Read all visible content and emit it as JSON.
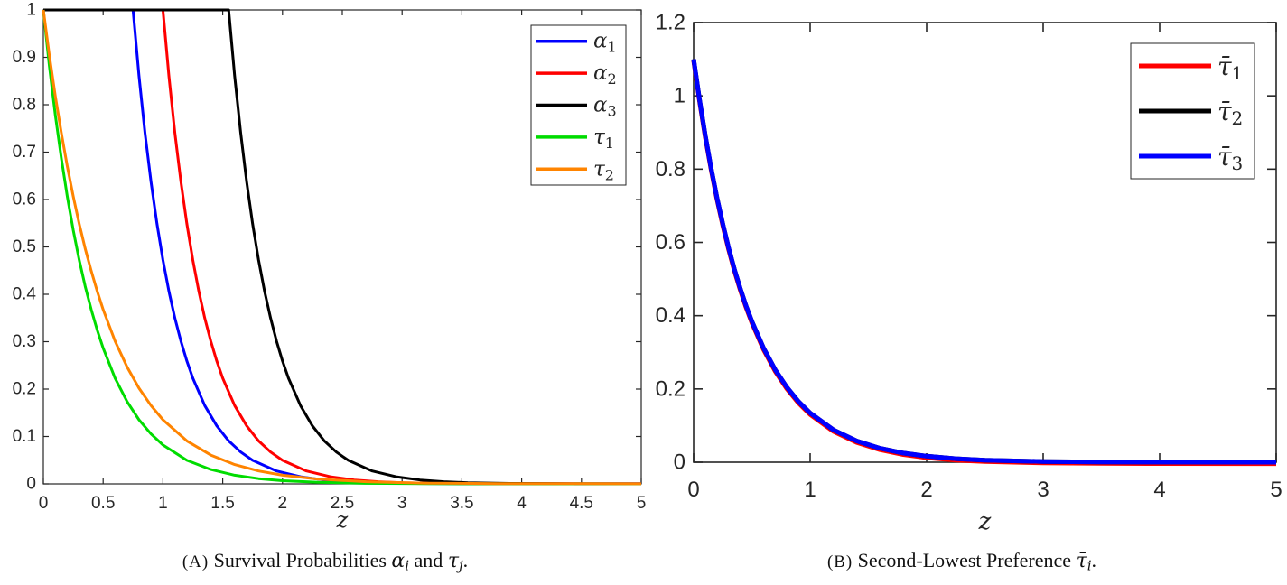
{
  "figure": {
    "background": "#ffffff",
    "axis_color": "#262626"
  },
  "captions": [
    {
      "id": "a",
      "parts": [
        {
          "t": "(A)",
          "s": "label"
        },
        {
          "t": " Survival Probabilities ",
          "s": "rm"
        },
        {
          "t": "α",
          "s": "it"
        },
        {
          "t": "i",
          "s": "sub"
        },
        {
          "t": " and ",
          "s": "rm"
        },
        {
          "t": "τ",
          "s": "it"
        },
        {
          "t": "j",
          "s": "sub"
        },
        {
          "t": ".",
          "s": "rm"
        }
      ]
    },
    {
      "id": "b",
      "parts": [
        {
          "t": "(B)",
          "s": "label"
        },
        {
          "t": " Second-Lowest Preference ",
          "s": "rm"
        },
        {
          "t": "τ̄",
          "s": "it"
        },
        {
          "t": "i",
          "s": "sub"
        },
        {
          "t": ".",
          "s": "rm"
        }
      ]
    }
  ],
  "chart_data": [
    {
      "id": "A",
      "type": "line",
      "title": "",
      "xlabel": "z",
      "ylabel": "",
      "xlim": [
        0,
        5
      ],
      "ylim": [
        0,
        1
      ],
      "grid": false,
      "legend_position": "top-right",
      "xticks": {
        "values": [
          0,
          0.5,
          1,
          1.5,
          2,
          2.5,
          3,
          3.5,
          4,
          4.5,
          5
        ],
        "labels": [
          "0",
          "0.5",
          "1",
          "1.5",
          "2",
          "2.5",
          "3",
          "3.5",
          "4",
          "4.5",
          "5"
        ]
      },
      "yticks": {
        "values": [
          0,
          0.1,
          0.2,
          0.3,
          0.4,
          0.5,
          0.6,
          0.7,
          0.8,
          0.9,
          1
        ],
        "labels": [
          "0",
          "0.1",
          "0.2",
          "0.3",
          "0.4",
          "0.5",
          "0.6",
          "0.7",
          "0.8",
          "0.9",
          "1"
        ]
      },
      "series": [
        {
          "key": "alpha1",
          "base": "α",
          "sub": "1",
          "color": "#0000ff",
          "points": [
            [
              0,
              1
            ],
            [
              0.75,
              1
            ],
            [
              0.8,
              0.8607
            ],
            [
              0.85,
              0.7408
            ],
            [
              0.9,
              0.6376
            ],
            [
              0.95,
              0.5488
            ],
            [
              1,
              0.4724
            ],
            [
              1.05,
              0.4066
            ],
            [
              1.1,
              0.3499
            ],
            [
              1.15,
              0.3012
            ],
            [
              1.2,
              0.2592
            ],
            [
              1.25,
              0.2231
            ],
            [
              1.35,
              0.1653
            ],
            [
              1.45,
              0.1225
            ],
            [
              1.55,
              0.0907
            ],
            [
              1.65,
              0.0672
            ],
            [
              1.75,
              0.0498
            ],
            [
              1.95,
              0.0273
            ],
            [
              2.15,
              0.015
            ],
            [
              2.35,
              0.0082
            ],
            [
              2.55,
              0.0045
            ],
            [
              2.75,
              0.0025
            ],
            [
              3.1,
              0.0009
            ],
            [
              3.5,
              0.0003
            ],
            [
              5,
              0.0001
            ]
          ]
        },
        {
          "key": "alpha2",
          "base": "α",
          "sub": "2",
          "color": "#ff0000",
          "points": [
            [
              0,
              1
            ],
            [
              1,
              1
            ],
            [
              1.05,
              0.8607
            ],
            [
              1.1,
              0.7408
            ],
            [
              1.15,
              0.6376
            ],
            [
              1.2,
              0.5488
            ],
            [
              1.25,
              0.4724
            ],
            [
              1.3,
              0.4066
            ],
            [
              1.35,
              0.3499
            ],
            [
              1.4,
              0.3012
            ],
            [
              1.45,
              0.2592
            ],
            [
              1.5,
              0.2231
            ],
            [
              1.6,
              0.1653
            ],
            [
              1.7,
              0.1225
            ],
            [
              1.8,
              0.0907
            ],
            [
              1.9,
              0.0672
            ],
            [
              2,
              0.0498
            ],
            [
              2.2,
              0.0273
            ],
            [
              2.4,
              0.015
            ],
            [
              2.6,
              0.0082
            ],
            [
              2.8,
              0.0045
            ],
            [
              3,
              0.0025
            ],
            [
              3.35,
              0.0009
            ],
            [
              3.75,
              0.0003
            ],
            [
              5,
              0.0001
            ]
          ]
        },
        {
          "key": "alpha3",
          "base": "α",
          "sub": "3",
          "color": "#000000",
          "points": [
            [
              0,
              1
            ],
            [
              1.55,
              1
            ],
            [
              1.6,
              0.8607
            ],
            [
              1.65,
              0.7408
            ],
            [
              1.7,
              0.6376
            ],
            [
              1.75,
              0.5488
            ],
            [
              1.8,
              0.4724
            ],
            [
              1.85,
              0.4066
            ],
            [
              1.9,
              0.3499
            ],
            [
              1.95,
              0.3012
            ],
            [
              2,
              0.2592
            ],
            [
              2.05,
              0.2231
            ],
            [
              2.15,
              0.1653
            ],
            [
              2.25,
              0.1225
            ],
            [
              2.35,
              0.0907
            ],
            [
              2.45,
              0.0672
            ],
            [
              2.55,
              0.0498
            ],
            [
              2.75,
              0.0273
            ],
            [
              2.95,
              0.015
            ],
            [
              3.15,
              0.0082
            ],
            [
              3.35,
              0.0045
            ],
            [
              3.55,
              0.0025
            ],
            [
              3.9,
              0.0009
            ],
            [
              4.3,
              0.0003
            ],
            [
              5,
              0.0001
            ]
          ]
        },
        {
          "key": "tau1",
          "base": "τ",
          "sub": "1",
          "color": "#00dc00",
          "points": [
            [
              0,
              1
            ],
            [
              0.05,
              0.8825
            ],
            [
              0.1,
              0.7788
            ],
            [
              0.15,
              0.6873
            ],
            [
              0.2,
              0.6065
            ],
            [
              0.25,
              0.5353
            ],
            [
              0.3,
              0.4724
            ],
            [
              0.35,
              0.4169
            ],
            [
              0.4,
              0.3679
            ],
            [
              0.45,
              0.3247
            ],
            [
              0.5,
              0.2865
            ],
            [
              0.6,
              0.2231
            ],
            [
              0.7,
              0.1738
            ],
            [
              0.8,
              0.1353
            ],
            [
              0.9,
              0.1054
            ],
            [
              1,
              0.0821
            ],
            [
              1.2,
              0.0498
            ],
            [
              1.4,
              0.0302
            ],
            [
              1.6,
              0.0183
            ],
            [
              1.8,
              0.0111
            ],
            [
              2,
              0.0067
            ],
            [
              2.3,
              0.0032
            ],
            [
              2.7,
              0.0012
            ],
            [
              3.2,
              0.0003
            ],
            [
              5,
              0
            ]
          ]
        },
        {
          "key": "tau2",
          "base": "τ",
          "sub": "2",
          "color": "#ff8400",
          "points": [
            [
              0,
              1
            ],
            [
              0.05,
              0.9048
            ],
            [
              0.1,
              0.8187
            ],
            [
              0.15,
              0.7408
            ],
            [
              0.2,
              0.6703
            ],
            [
              0.25,
              0.6065
            ],
            [
              0.3,
              0.5488
            ],
            [
              0.35,
              0.4966
            ],
            [
              0.4,
              0.4493
            ],
            [
              0.45,
              0.4066
            ],
            [
              0.5,
              0.3679
            ],
            [
              0.6,
              0.3012
            ],
            [
              0.7,
              0.2466
            ],
            [
              0.8,
              0.2019
            ],
            [
              0.9,
              0.1653
            ],
            [
              1,
              0.1353
            ],
            [
              1.2,
              0.0907
            ],
            [
              1.4,
              0.0608
            ],
            [
              1.6,
              0.0408
            ],
            [
              1.8,
              0.0273
            ],
            [
              2,
              0.0183
            ],
            [
              2.3,
              0.01
            ],
            [
              2.7,
              0.0045
            ],
            [
              3.2,
              0.0016
            ],
            [
              3.8,
              0.0005
            ],
            [
              5,
              0.0001
            ]
          ]
        }
      ]
    },
    {
      "id": "B",
      "type": "line",
      "title": "",
      "xlabel": "z",
      "ylabel": "",
      "xlim": [
        0,
        5
      ],
      "ylim": [
        0,
        1.2
      ],
      "grid": false,
      "legend_position": "top-right",
      "xticks": {
        "values": [
          0,
          1,
          2,
          3,
          4,
          5
        ],
        "labels": [
          "0",
          "1",
          "2",
          "3",
          "4",
          "5"
        ]
      },
      "yticks": {
        "values": [
          0,
          0.2,
          0.4,
          0.6,
          0.8,
          1,
          1.2
        ],
        "labels": [
          "0",
          "0.2",
          "0.4",
          "0.6",
          "0.8",
          "1",
          "1.2"
        ]
      },
      "series": [
        {
          "key": "taubar1",
          "base": "τ̄",
          "sub": "1",
          "color": "#ff0000",
          "points": [
            [
              0,
              1.096
            ],
            [
              0.05,
              0.9862
            ],
            [
              0.1,
              0.8874
            ],
            [
              0.15,
              0.7984
            ],
            [
              0.2,
              0.7183
            ],
            [
              0.25,
              0.6462
            ],
            [
              0.3,
              0.5813
            ],
            [
              0.35,
              0.5229
            ],
            [
              0.4,
              0.4703
            ],
            [
              0.45,
              0.423
            ],
            [
              0.5,
              0.3804
            ],
            [
              0.6,
              0.3075
            ],
            [
              0.7,
              0.2484
            ],
            [
              0.8,
              0.2005
            ],
            [
              0.9,
              0.1617
            ],
            [
              1,
              0.1303
            ],
            [
              1.2,
              0.0841
            ],
            [
              1.4,
              0.0539
            ],
            [
              1.6,
              0.034
            ],
            [
              1.8,
              0.0209
            ],
            [
              2,
              0.0124
            ],
            [
              2.25,
              0.0057
            ],
            [
              2.5,
              0.0017
            ],
            [
              3,
              -0.002
            ],
            [
              3.5,
              -0.0033
            ],
            [
              4,
              -0.0038
            ],
            [
              5,
              -0.004
            ]
          ]
        },
        {
          "key": "taubar2",
          "base": "τ̄",
          "sub": "2",
          "color": "#000000",
          "points": [
            [
              0,
              1.1
            ],
            [
              0.05,
              0.9902
            ],
            [
              0.1,
              0.8914
            ],
            [
              0.15,
              0.8024
            ],
            [
              0.2,
              0.7223
            ],
            [
              0.25,
              0.6502
            ],
            [
              0.3,
              0.5853
            ],
            [
              0.35,
              0.5269
            ],
            [
              0.4,
              0.4743
            ],
            [
              0.45,
              0.427
            ],
            [
              0.5,
              0.3844
            ],
            [
              0.6,
              0.3115
            ],
            [
              0.7,
              0.2524
            ],
            [
              0.8,
              0.2045
            ],
            [
              0.9,
              0.1657
            ],
            [
              1,
              0.1343
            ],
            [
              1.2,
              0.0881
            ],
            [
              1.4,
              0.0579
            ],
            [
              1.6,
              0.038
            ],
            [
              1.8,
              0.0249
            ],
            [
              2,
              0.0164
            ],
            [
              2.25,
              0.0097
            ],
            [
              2.5,
              0.0057
            ],
            [
              3,
              0.002
            ],
            [
              3.5,
              0.0007
            ],
            [
              4,
              0.0002
            ],
            [
              5,
              0
            ]
          ]
        },
        {
          "key": "taubar3",
          "base": "τ̄",
          "sub": "3",
          "color": "#0000ff",
          "points": [
            [
              0,
              1.1
            ],
            [
              0.05,
              0.9902
            ],
            [
              0.1,
              0.8914
            ],
            [
              0.15,
              0.8024
            ],
            [
              0.2,
              0.7223
            ],
            [
              0.25,
              0.6502
            ],
            [
              0.3,
              0.5853
            ],
            [
              0.35,
              0.5269
            ],
            [
              0.4,
              0.4743
            ],
            [
              0.45,
              0.427
            ],
            [
              0.5,
              0.3844
            ],
            [
              0.6,
              0.3115
            ],
            [
              0.7,
              0.2524
            ],
            [
              0.8,
              0.2045
            ],
            [
              0.9,
              0.1657
            ],
            [
              1,
              0.1343
            ],
            [
              1.2,
              0.0881
            ],
            [
              1.4,
              0.0579
            ],
            [
              1.6,
              0.038
            ],
            [
              1.8,
              0.0249
            ],
            [
              2,
              0.0164
            ],
            [
              2.25,
              0.0097
            ],
            [
              2.5,
              0.0057
            ],
            [
              3,
              0.002
            ],
            [
              3.5,
              0.0007
            ],
            [
              4,
              0.0002
            ],
            [
              5,
              0
            ]
          ]
        }
      ]
    }
  ]
}
